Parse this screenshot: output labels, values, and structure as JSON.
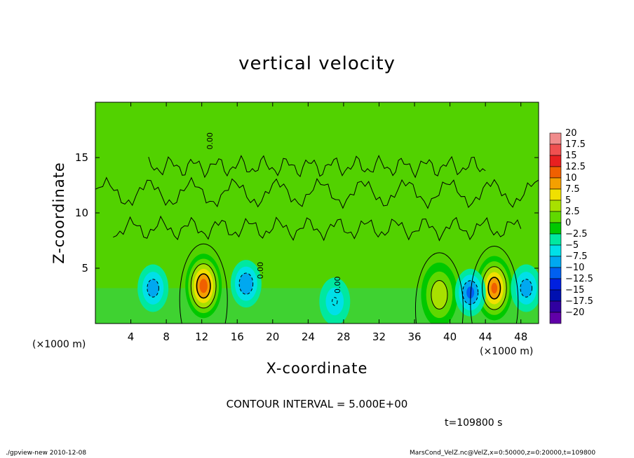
{
  "chart_data": {
    "type": "heatmap",
    "title": "vertical velocity",
    "xlabel": "X-coordinate",
    "ylabel": "Z-coordinate",
    "x_unit": "(×1000 m)",
    "xlim": [
      0,
      50
    ],
    "ylim": [
      0,
      20
    ],
    "x_ticks": [
      4,
      8,
      12,
      16,
      20,
      24,
      28,
      32,
      36,
      40,
      44,
      48
    ],
    "y_ticks": [
      5,
      10,
      15
    ],
    "colorbar": {
      "levels": [
        20,
        17.5,
        15,
        12.5,
        10,
        7.5,
        5,
        2.5,
        0,
        -2.5,
        -5,
        -7.5,
        -10,
        -12.5,
        -15,
        -17.5,
        -20
      ],
      "labels": [
        "20",
        "17.5",
        "15",
        "12.5",
        "10",
        "7.5",
        "5",
        "2.5",
        "0",
        "−2.5",
        "−5",
        "−7.5",
        "−10",
        "−12.5",
        "−15",
        "−17.5",
        "−20"
      ],
      "colors": [
        "#f08c8c",
        "#f05050",
        "#e82020",
        "#f06000",
        "#f4a000",
        "#f0e000",
        "#a8e000",
        "#60d800",
        "#00c800",
        "#00e8a0",
        "#00e0e8",
        "#00a8f0",
        "#0060f0",
        "#0020e0",
        "#0010b0",
        "#3000a0",
        "#6000a8"
      ]
    },
    "features": [
      {
        "kind": "updraft",
        "x": 12.2,
        "z": 3.4,
        "peak": 14
      },
      {
        "kind": "updraft",
        "x": 45.0,
        "z": 3.2,
        "peak": 13
      },
      {
        "kind": "updraft",
        "x": 38.8,
        "z": 2.6,
        "peak": 7
      },
      {
        "kind": "downdraft",
        "x": 6.5,
        "z": 3.2,
        "peak": -6
      },
      {
        "kind": "downdraft",
        "x": 17.0,
        "z": 3.6,
        "peak": -7
      },
      {
        "kind": "downdraft",
        "x": 42.3,
        "z": 2.8,
        "peak": -8
      },
      {
        "kind": "downdraft",
        "x": 48.6,
        "z": 3.2,
        "peak": -6
      },
      {
        "kind": "downdraft",
        "x": 27.0,
        "z": 2.0,
        "peak": -4
      }
    ],
    "contour_labels": [
      {
        "text": "0.00",
        "x": 18.9,
        "z": 4.8
      },
      {
        "text": "0.00",
        "x": 27.6,
        "z": 3.5
      },
      {
        "text": "0.00",
        "x": 13.2,
        "z": 16.5
      }
    ]
  },
  "annotations": {
    "contour_interval": "CONTOUR INTERVAL = 5.000E+00",
    "time": "t=109800 s",
    "footer_left": "./gpview-new   2010-12-08",
    "footer_right": "MarsCond_VelZ.nc@VelZ,x=0:50000,z=0:20000,t=109800"
  }
}
